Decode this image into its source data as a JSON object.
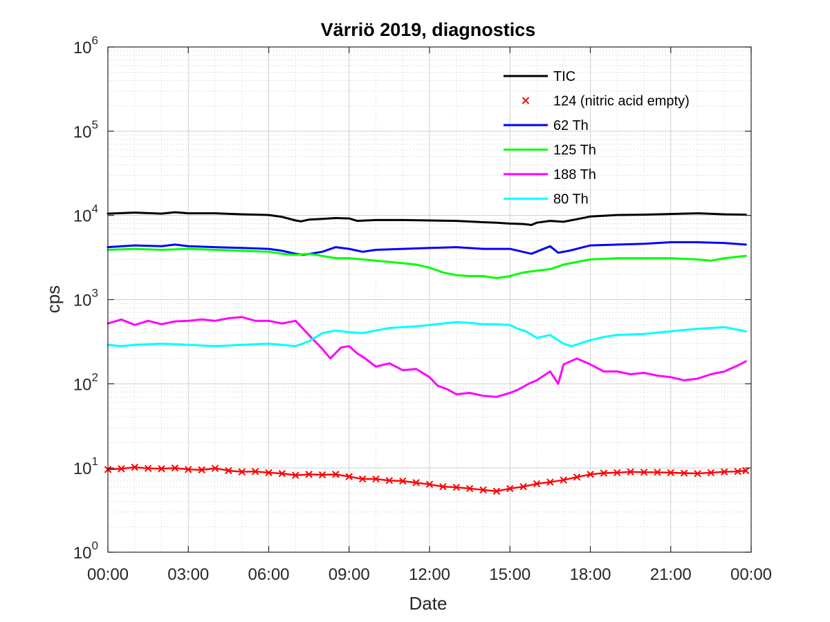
{
  "chart_data": {
    "type": "line",
    "title": "Värriö 2019, diagnostics",
    "xlabel": "Date",
    "ylabel": "cps",
    "yscale": "log",
    "ylim": [
      1,
      1000000
    ],
    "xlim": [
      0,
      24
    ],
    "grid": true,
    "minor_grid": true,
    "legend_position": "top-right",
    "x_ticks": [
      0,
      3,
      6,
      9,
      12,
      15,
      18,
      21,
      24
    ],
    "x_tick_labels": [
      "00:00",
      "03:00",
      "06:00",
      "09:00",
      "12:00",
      "15:00",
      "18:00",
      "21:00",
      "00:00"
    ],
    "y_ticks": [
      {
        "value": 1,
        "base": "10",
        "exp": "0"
      },
      {
        "value": 10,
        "base": "10",
        "exp": "1"
      },
      {
        "value": 100,
        "base": "10",
        "exp": "2"
      },
      {
        "value": 1000,
        "base": "10",
        "exp": "3"
      },
      {
        "value": 10000,
        "base": "10",
        "exp": "4"
      },
      {
        "value": 100000,
        "base": "10",
        "exp": "5"
      },
      {
        "value": 1000000,
        "base": "10",
        "exp": "6"
      }
    ],
    "series": [
      {
        "name": "TIC",
        "color": "#000000",
        "style": "line",
        "x": [
          0,
          1,
          2,
          2.5,
          3,
          4,
          5,
          6,
          6.5,
          7,
          7.2,
          7.5,
          8,
          8.5,
          9,
          9.3,
          10,
          11,
          12,
          13,
          14,
          14.5,
          15,
          15.5,
          15.8,
          16,
          16.5,
          17,
          17.5,
          18,
          19,
          20,
          21,
          22,
          23,
          23.8
        ],
        "y": [
          10500,
          10800,
          10500,
          10900,
          10600,
          10600,
          10300,
          10100,
          9600,
          8700,
          8500,
          8900,
          9100,
          9300,
          9200,
          8600,
          8800,
          8800,
          8700,
          8600,
          8300,
          8200,
          8000,
          7900,
          7700,
          8200,
          8600,
          8400,
          9000,
          9700,
          10100,
          10200,
          10400,
          10600,
          10300,
          10200
        ]
      },
      {
        "name": "124 (nitric acid empty)",
        "color": "#ff0000",
        "style": "marker-x",
        "x": [
          0,
          0.5,
          1,
          1.5,
          2,
          2.5,
          3,
          3.5,
          4,
          4.5,
          5,
          5.5,
          6,
          6.5,
          7,
          7.5,
          8,
          8.5,
          9,
          9.5,
          10,
          10.5,
          11,
          11.5,
          12,
          12.5,
          13,
          13.5,
          14,
          14.5,
          15,
          15.5,
          16,
          16.5,
          17,
          17.5,
          18,
          18.5,
          19,
          19.5,
          20,
          20.5,
          21,
          21.5,
          22,
          22.5,
          23,
          23.5,
          23.8
        ],
        "y": [
          9.6,
          9.8,
          10.2,
          9.9,
          9.8,
          10.0,
          9.6,
          9.5,
          9.9,
          9.3,
          9.0,
          9.1,
          8.8,
          8.6,
          8.2,
          8.4,
          8.3,
          8.4,
          7.9,
          7.4,
          7.4,
          7.1,
          7.0,
          6.7,
          6.4,
          6.0,
          5.9,
          5.7,
          5.5,
          5.3,
          5.7,
          6.0,
          6.5,
          6.8,
          7.2,
          7.8,
          8.4,
          8.7,
          8.8,
          9.0,
          8.9,
          8.9,
          8.8,
          8.7,
          8.6,
          8.8,
          9.0,
          9.1,
          9.3
        ]
      },
      {
        "name": "62 Th",
        "color": "#0000ff",
        "style": "line",
        "x": [
          0,
          1,
          2,
          2.5,
          3,
          4,
          5,
          6,
          6.5,
          7,
          7.3,
          8,
          8.5,
          9,
          9.5,
          10,
          11,
          12,
          13,
          14,
          15,
          15.8,
          16.5,
          16.8,
          17.2,
          18,
          19,
          20,
          21,
          22,
          23,
          23.8
        ],
        "y": [
          4200,
          4400,
          4300,
          4500,
          4300,
          4200,
          4100,
          4000,
          3800,
          3500,
          3400,
          3700,
          4200,
          4000,
          3700,
          3900,
          4000,
          4100,
          4200,
          4000,
          4000,
          3500,
          4300,
          3600,
          3800,
          4400,
          4500,
          4600,
          4800,
          4800,
          4700,
          4500
        ]
      },
      {
        "name": "125 Th",
        "color": "#00ff00",
        "style": "line",
        "x": [
          0,
          1,
          2,
          3,
          4,
          5,
          6,
          6.5,
          7,
          7.5,
          8,
          8.5,
          9,
          9.5,
          10,
          10.5,
          11,
          11.5,
          12,
          12.5,
          13,
          13.5,
          14,
          14.5,
          15,
          15.5,
          16,
          16.5,
          17,
          17.5,
          18,
          19,
          20,
          21,
          22,
          22.5,
          23,
          23.8
        ],
        "y": [
          3900,
          4000,
          3900,
          4000,
          3900,
          3800,
          3700,
          3500,
          3400,
          3500,
          3300,
          3100,
          3100,
          3000,
          2900,
          2800,
          2700,
          2600,
          2400,
          2100,
          1950,
          1900,
          1900,
          1800,
          1900,
          2100,
          2200,
          2300,
          2600,
          2800,
          3000,
          3100,
          3100,
          3100,
          3000,
          2900,
          3100,
          3300
        ]
      },
      {
        "name": "188 Th",
        "color": "#ff00ff",
        "style": "line",
        "x": [
          0,
          0.5,
          1,
          1.5,
          2,
          2.5,
          3,
          3.5,
          4,
          4.5,
          5,
          5.5,
          6,
          6.5,
          7,
          7.5,
          8,
          8.3,
          8.7,
          9,
          9.3,
          9.6,
          10,
          10.5,
          11,
          11.5,
          12,
          12.3,
          12.7,
          13,
          13.5,
          14,
          14.5,
          15,
          15.3,
          15.7,
          16,
          16.5,
          16.8,
          17,
          17.5,
          18,
          18.5,
          19,
          19.5,
          20,
          20.5,
          21,
          21.5,
          22,
          22.5,
          23,
          23.5,
          23.8
        ],
        "y": [
          520,
          580,
          500,
          560,
          510,
          550,
          560,
          580,
          560,
          600,
          620,
          560,
          560,
          520,
          560,
          380,
          260,
          200,
          270,
          280,
          230,
          200,
          160,
          175,
          145,
          150,
          120,
          95,
          85,
          75,
          78,
          72,
          70,
          78,
          85,
          100,
          110,
          140,
          100,
          170,
          200,
          170,
          140,
          140,
          130,
          135,
          125,
          120,
          110,
          115,
          130,
          140,
          165,
          185
        ]
      },
      {
        "name": "80 Th",
        "color": "#00ffff",
        "style": "line",
        "x": [
          0,
          0.5,
          1,
          2,
          3,
          4,
          5,
          6,
          6.5,
          7,
          7.5,
          8,
          8.5,
          9,
          9.5,
          10,
          10.5,
          11,
          11.5,
          12,
          12.5,
          13,
          13.5,
          14,
          14.5,
          15,
          15.3,
          15.6,
          16,
          16.5,
          17,
          17.3,
          17.6,
          18,
          18.5,
          19,
          20,
          21,
          22,
          23,
          23.8
        ],
        "y": [
          290,
          280,
          290,
          300,
          290,
          280,
          290,
          300,
          290,
          280,
          320,
          400,
          430,
          410,
          400,
          430,
          460,
          470,
          480,
          500,
          520,
          540,
          530,
          510,
          510,
          500,
          450,
          420,
          350,
          380,
          300,
          280,
          300,
          330,
          360,
          380,
          390,
          420,
          450,
          470,
          420
        ]
      }
    ]
  }
}
